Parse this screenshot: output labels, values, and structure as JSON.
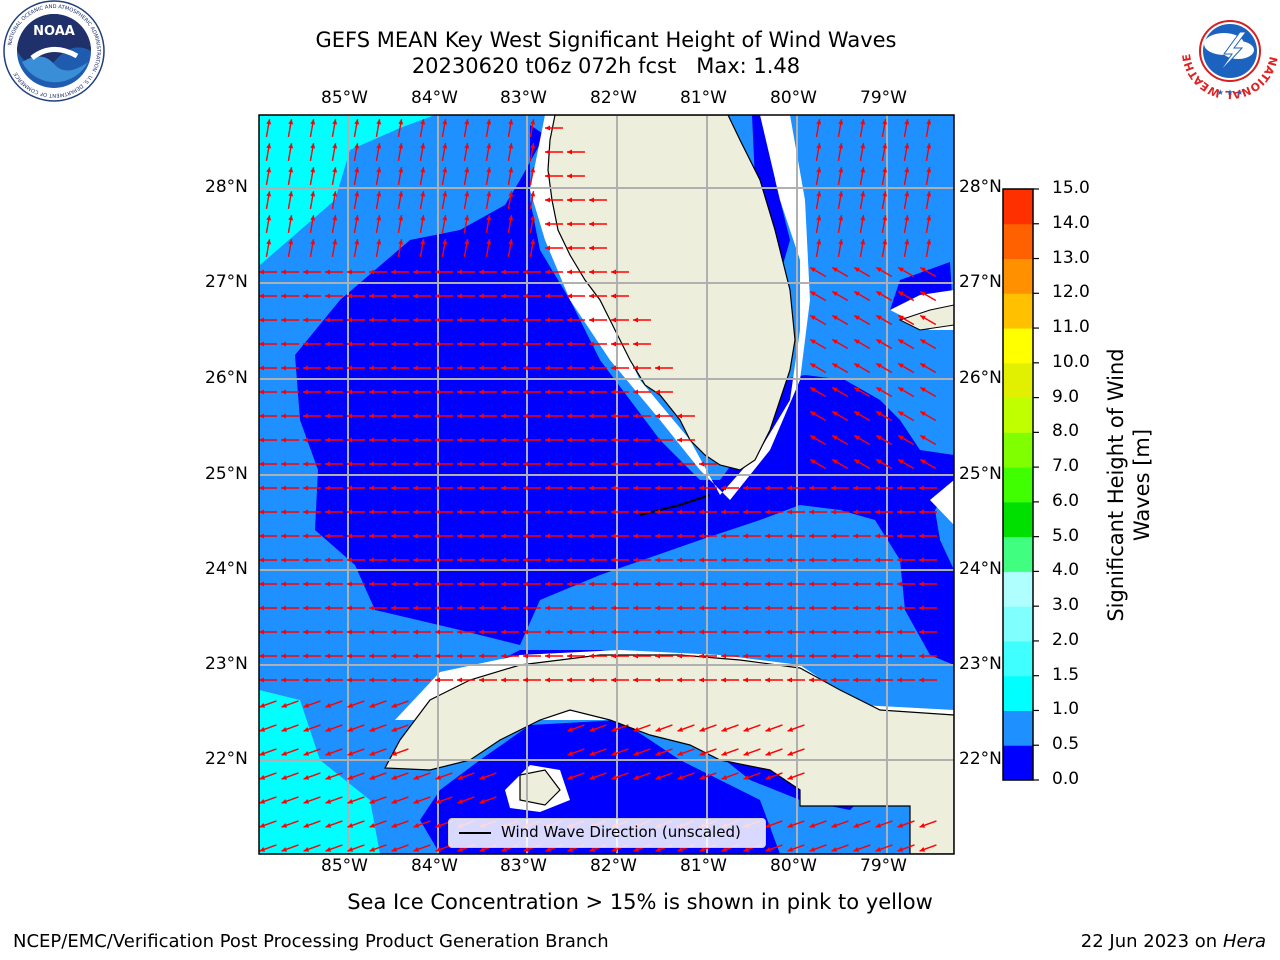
{
  "title_line1": "GEFS MEAN Key West Significant Height of Wind Waves",
  "title_line2": "20230620 t06z 072h fcst   Max: 1.48",
  "logos": {
    "left_icon": "noaa-logo",
    "left_text": "NOAA",
    "left_ring_text": "NATIONAL OCEANIC AND ATMOSPHERIC ADMINISTRATION · U.S. DEPARTMENT OF COMMERCE",
    "right_icon": "nws-logo",
    "right_ring_text": "NATIONAL WEATHER SERVICE"
  },
  "map": {
    "lon_labels": [
      "85°W",
      "84°W",
      "83°W",
      "82°W",
      "81°W",
      "80°W",
      "79°W"
    ],
    "lat_labels": [
      "28°N",
      "27°N",
      "26°N",
      "25°N",
      "24°N",
      "23°N",
      "22°N"
    ],
    "colors": {
      "land": "#eeeedd",
      "coast": "#000000",
      "grid": "#b0b0b0",
      "arrow": "#ff0000",
      "no_data": "#ffffff"
    },
    "arrow_field": [
      {
        "region": "north",
        "direction_deg": 10
      },
      {
        "region": "central",
        "direction_deg": 270
      },
      {
        "region": "east",
        "direction_deg": 300
      },
      {
        "region": "south",
        "direction_deg": 250
      }
    ]
  },
  "legend": {
    "label": "Wind Wave Direction (unscaled)"
  },
  "colorbar": {
    "title": "Significant Height of Wind Waves [m]",
    "ticks": [
      "0.0",
      "0.5",
      "1.0",
      "1.5",
      "2.0",
      "3.0",
      "4.0",
      "5.0",
      "6.0",
      "7.0",
      "8.0",
      "9.0",
      "10.0",
      "11.0",
      "12.0",
      "13.0",
      "14.0",
      "15.0"
    ],
    "colors": [
      "#0000ff",
      "#1e90ff",
      "#00ffff",
      "#40ffff",
      "#80ffff",
      "#b0ffff",
      "#40ff80",
      "#00e000",
      "#40ff00",
      "#80ff00",
      "#c0ff00",
      "#e0f000",
      "#ffff00",
      "#ffc000",
      "#ff9000",
      "#ff6000",
      "#ff3000"
    ]
  },
  "note": "Sea Ice Concentration > 15% is shown in pink to yellow",
  "footer_left": "NCEP/EMC/Verification Post Processing Product Generation Branch",
  "footer_right_prefix": "22 Jun 2023 on",
  "footer_right_host": "Hera"
}
